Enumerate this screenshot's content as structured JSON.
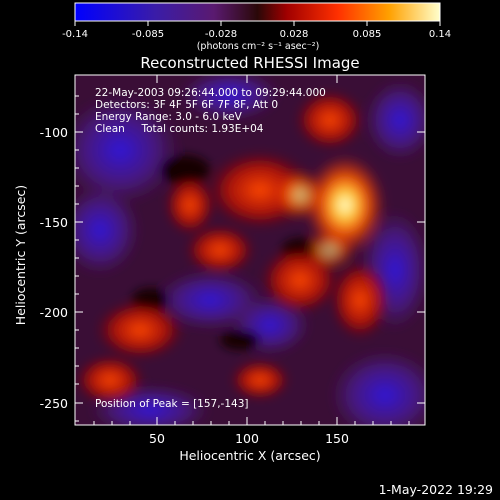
{
  "colorbar": {
    "ticks": [
      "-0.14",
      "-0.085",
      "-0.028",
      "0.028",
      "0.085",
      "0.14"
    ],
    "units_label": "(photons cm⁻² s⁻¹ asec⁻²)"
  },
  "title": "Reconstructed RHESSI Image",
  "info": {
    "time_range": "22-May-2003 09:26:44.000 to 09:29:44.000",
    "detectors": "Detectors: 3F 4F 5F 6F 7F 8F, Att 0",
    "energy": "Energy Range: 3.0 - 6.0 keV",
    "method": "Clean     Total counts: 1.93E+04"
  },
  "peak": "Position of Peak = [157,-143]",
  "axes": {
    "xlabel": "Heliocentric X (arcsec)",
    "ylabel": "Heliocentric Y (arcsec)",
    "xticks": [
      "50",
      "100",
      "150"
    ],
    "yticks": [
      "-100",
      "-150",
      "-200",
      "-250"
    ]
  },
  "footer_date": "1-May-2022 19:29"
}
